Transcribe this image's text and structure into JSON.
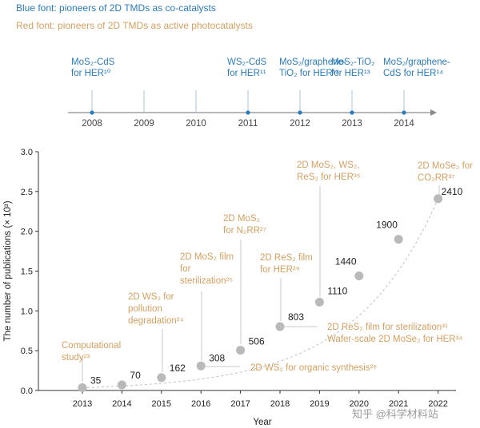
{
  "legend": {
    "blue": "Blue font: pioneers of 2D TMDs as co-catalysts",
    "orange": "Red font: pioneers of 2D TMDs as active photocatalysts"
  },
  "timeline": {
    "years": [
      "2008",
      "2009",
      "2010",
      "2011",
      "2012",
      "2013",
      "2014"
    ],
    "events": [
      {
        "year": "2008",
        "lines": [
          "MoS₂-CdS",
          "for HER¹⁰"
        ]
      },
      {
        "year": "2011",
        "lines": [
          "WS₂-CdS",
          "for HER¹¹"
        ]
      },
      {
        "year": "2012",
        "lines": [
          "MoS₂/graphene-",
          "TiO₂ for HER¹²"
        ]
      },
      {
        "year": "2013",
        "lines": [
          "MoS₂-TiO₂",
          "for HER¹³"
        ]
      },
      {
        "year": "2014",
        "lines": [
          "MoS₂/graphene-",
          "CdS for HER¹⁴"
        ]
      }
    ]
  },
  "colors": {
    "blue": "#2b7bb9",
    "orange": "#d4a061",
    "point": "#b9b9b9",
    "axis": "#333333"
  },
  "chart_data": {
    "type": "scatter",
    "title": "",
    "xlabel": "Year",
    "ylabel": "The number of publications (× 10³)",
    "x": [
      2013,
      2014,
      2015,
      2016,
      2017,
      2018,
      2019,
      2020,
      2021,
      2022
    ],
    "x_tick_labels": [
      "2013",
      "2014",
      "2015",
      "2016",
      "2017",
      "2018",
      "2019",
      "2020",
      "2021",
      "2022"
    ],
    "values": [
      0.035,
      0.07,
      0.162,
      0.308,
      0.506,
      0.803,
      1.11,
      1.44,
      1.9,
      2.41
    ],
    "value_labels": [
      "35",
      "70",
      "162",
      "308",
      "506",
      "803",
      "1110",
      "1440",
      "1900",
      "2410"
    ],
    "ylim": [
      0,
      3.0
    ],
    "y_ticks": [
      "0.0",
      "0.5",
      "1.0",
      "1.5",
      "2.0",
      "2.5",
      "3.0"
    ],
    "trend": "dashed exponential fit",
    "annotations": [
      {
        "year": 2013,
        "lines": [
          "Computational",
          "study²³"
        ]
      },
      {
        "year": 2015,
        "lines": [
          "2D WS₂ for",
          "pollution",
          "degradation²⁴"
        ]
      },
      {
        "year": 2016,
        "lines": [
          "2D MoS₂ film",
          "for",
          "sterilization²⁵"
        ]
      },
      {
        "year": 2016,
        "lines": [
          "2D WS₂ for organic synthesis²⁶"
        ]
      },
      {
        "year": 2017,
        "lines": [
          "2D MoS₂",
          "for N₂RR²⁷"
        ]
      },
      {
        "year": 2018,
        "lines": [
          "2D ReS₂ film",
          "for HER²⁹"
        ]
      },
      {
        "year": 2018,
        "lines": [
          "2D ReS₂ film for sterilization³¹",
          "Wafer-scale 2D MoSe₂ for HER³⁴"
        ]
      },
      {
        "year": 2019,
        "lines": [
          "2D MoS₂, WS₂,",
          "ReS₂ for HER³⁵"
        ]
      },
      {
        "year": 2022,
        "lines": [
          "2D MoSe₂ for",
          "CO₂RR³⁷"
        ]
      }
    ]
  },
  "watermark": {
    "text": "知乎 @科学材料站"
  }
}
